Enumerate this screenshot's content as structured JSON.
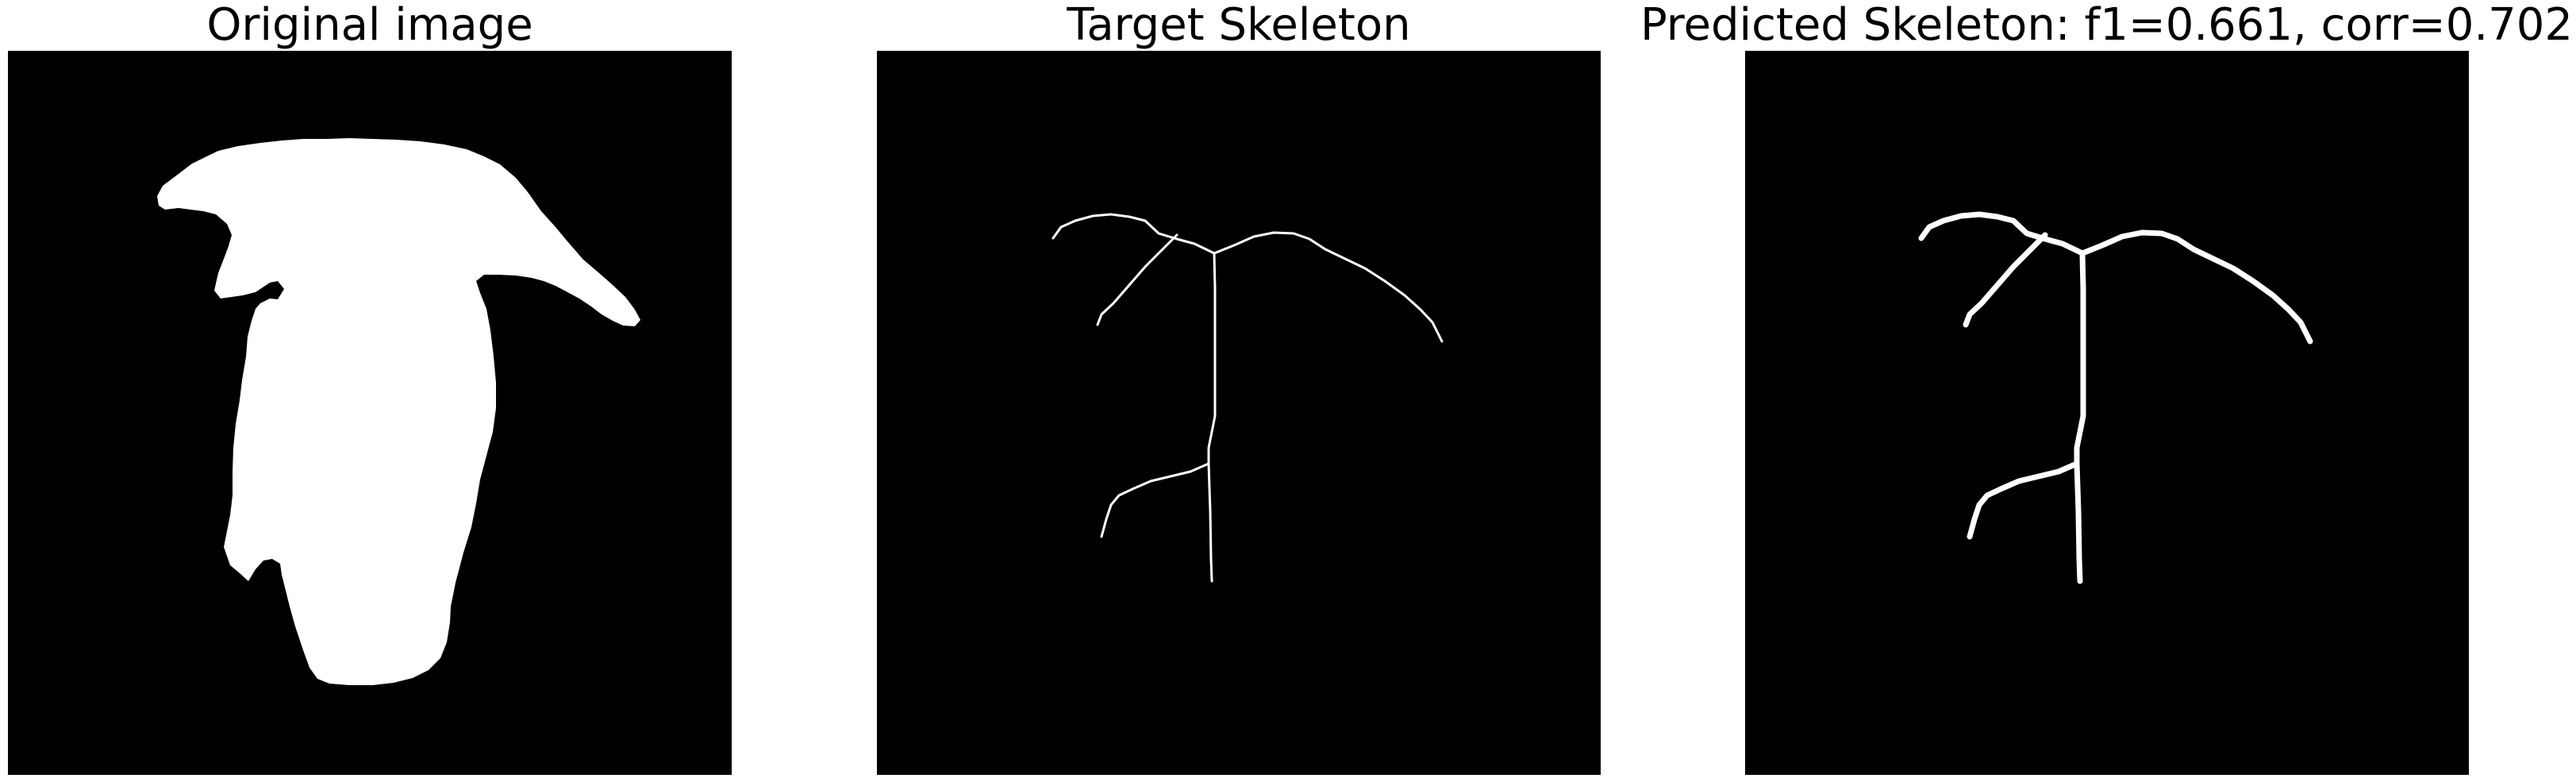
{
  "panels": [
    {
      "title": "Original image",
      "content": "binary silhouette mask (white shape on black)"
    },
    {
      "title": "Target Skeleton",
      "content": "thin white skeleton lines on black"
    },
    {
      "title": "Predicted Skeleton: f1=0.661, corr=0.702",
      "content": "thicker white skeleton lines on black"
    }
  ],
  "colors": {
    "background": "#ffffff",
    "panel_background": "#000000",
    "foreground": "#ffffff",
    "title_text": "#000000"
  }
}
